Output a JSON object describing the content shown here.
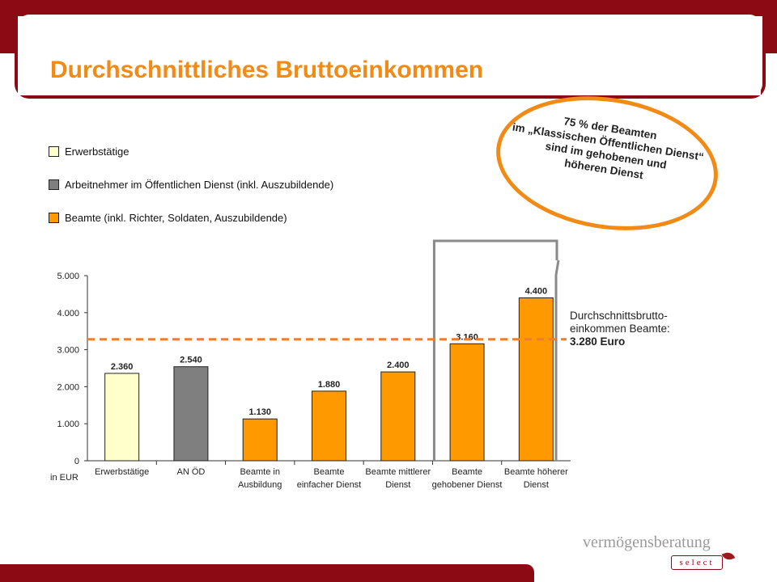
{
  "title": "Durchschnittliches Bruttoeinkommen",
  "legend": [
    {
      "label": "Erwerbstätige",
      "color": "#ffffcc"
    },
    {
      "label": "Arbeitnehmer im Öffentlichen Dienst (inkl. Auszubildende)",
      "color": "#7f7f7f"
    },
    {
      "label": "Beamte (inkl. Richter, Soldaten, Auszubildende)",
      "color": "#ff9900"
    }
  ],
  "callout": {
    "lines": [
      "75 % der Beamten",
      "im „Klassischen Öffentlichen Dienst“",
      "sind im gehobenen und",
      "höheren Dienst"
    ]
  },
  "average_note": {
    "line1": "Durchschnittsbrutto-",
    "line2": "einkommen Beamte:",
    "line3": "3.280 Euro"
  },
  "branding": {
    "name": "vermögensberatung",
    "tag": "select"
  },
  "chart_data": {
    "type": "bar",
    "unit_label": "in EUR",
    "ylim": [
      0,
      5000
    ],
    "y_ticks": [
      "0",
      "1.000",
      "2.000",
      "3.000",
      "4.000",
      "5.000"
    ],
    "categories": [
      [
        "Erwerbstätige"
      ],
      [
        "AN ÖD"
      ],
      [
        "Beamte in",
        "Ausbildung"
      ],
      [
        "Beamte",
        "einfacher Dienst"
      ],
      [
        "Beamte mittlerer",
        "Dienst"
      ],
      [
        "Beamte",
        "gehobener Dienst"
      ],
      [
        "Beamte höherer",
        "Dienst"
      ]
    ],
    "values": [
      2360,
      2540,
      1130,
      1880,
      2400,
      3160,
      4400
    ],
    "value_labels": [
      "2.360",
      "2.540",
      "1.130",
      "1.880",
      "2.400",
      "3.160",
      "4.400"
    ],
    "colors": [
      "#ffffcc",
      "#7f7f7f",
      "#ff9900",
      "#ff9900",
      "#ff9900",
      "#ff9900",
      "#ff9900"
    ],
    "average_line": 3280,
    "average_color": "#ee7d2f",
    "highlight_categories": [
      5,
      6
    ]
  }
}
